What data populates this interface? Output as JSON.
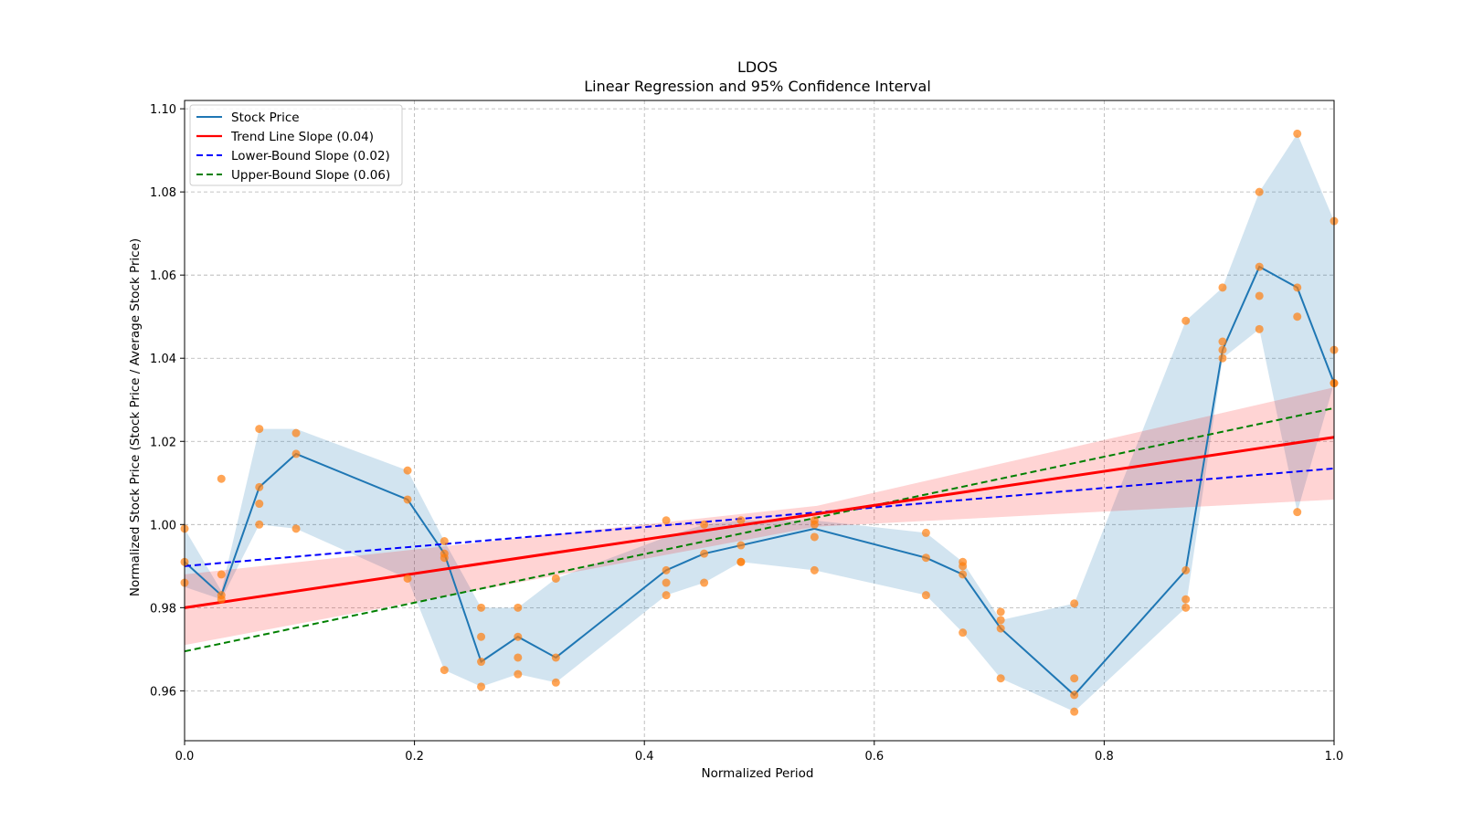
{
  "chart_data": {
    "type": "line",
    "title": "LDOS",
    "subtitle": "Linear Regression and 95% Confidence Interval",
    "xlabel": "Normalized Period",
    "ylabel": "Normalized Stock Price (Stock Price / Average Stock Price)",
    "xlim": [
      0,
      1
    ],
    "ylim": [
      0.948,
      1.102
    ],
    "xticks": [
      0.0,
      0.2,
      0.4,
      0.6,
      0.8,
      1.0
    ],
    "xtick_labels": [
      "0.0",
      "0.2",
      "0.4",
      "0.6",
      "0.8",
      "1.0"
    ],
    "yticks": [
      0.96,
      0.98,
      1.0,
      1.02,
      1.04,
      1.06,
      1.08,
      1.1
    ],
    "ytick_labels": [
      "0.96",
      "0.98",
      "1.00",
      "1.02",
      "1.04",
      "1.06",
      "1.08",
      "1.10"
    ],
    "grid": true,
    "legend_position": "top-left",
    "legend": [
      {
        "label": "Stock Price",
        "color": "#1f77b4",
        "style": "solid"
      },
      {
        "label": "Trend Line Slope (0.04)",
        "color": "#ff0000",
        "style": "solid"
      },
      {
        "label": "Lower-Bound Slope (0.02)",
        "color": "#0000ff",
        "style": "dashed"
      },
      {
        "label": "Upper-Bound Slope (0.06)",
        "color": "#008000",
        "style": "dashed"
      }
    ],
    "stock_price": {
      "x": [
        0.0,
        0.032,
        0.065,
        0.097,
        0.194,
        0.226,
        0.258,
        0.29,
        0.323,
        0.419,
        0.452,
        0.484,
        0.548,
        0.645,
        0.677,
        0.71,
        0.774,
        0.871,
        0.903,
        0.935,
        0.968,
        1.0
      ],
      "y": [
        0.991,
        0.983,
        1.009,
        1.017,
        1.006,
        0.993,
        0.967,
        0.973,
        0.968,
        0.989,
        0.993,
        0.995,
        0.999,
        0.992,
        0.988,
        0.975,
        0.959,
        0.989,
        1.042,
        1.062,
        1.057,
        1.034
      ]
    },
    "stock_band": {
      "lower": [
        0.985,
        0.982,
        1.0,
        0.999,
        0.987,
        0.965,
        0.961,
        0.964,
        0.962,
        0.983,
        0.986,
        0.991,
        0.989,
        0.983,
        0.974,
        0.963,
        0.955,
        0.98,
        1.04,
        1.047,
        1.003,
        1.034
      ],
      "upper": [
        0.999,
        0.984,
        1.023,
        1.023,
        1.013,
        0.996,
        0.98,
        0.98,
        0.987,
        0.997,
        1.0,
        1.001,
        1.001,
        0.998,
        0.991,
        0.977,
        0.981,
        1.049,
        1.057,
        1.08,
        1.094,
        1.073
      ]
    },
    "scatter_points": {
      "x": [
        0.0,
        0.0,
        0.0,
        0.032,
        0.032,
        0.032,
        0.032,
        0.065,
        0.065,
        0.065,
        0.065,
        0.097,
        0.097,
        0.097,
        0.194,
        0.194,
        0.194,
        0.226,
        0.226,
        0.226,
        0.226,
        0.258,
        0.258,
        0.258,
        0.258,
        0.29,
        0.29,
        0.29,
        0.29,
        0.323,
        0.323,
        0.323,
        0.419,
        0.419,
        0.419,
        0.419,
        0.452,
        0.452,
        0.452,
        0.484,
        0.484,
        0.484,
        0.484,
        0.548,
        0.548,
        0.548,
        0.548,
        0.645,
        0.645,
        0.645,
        0.677,
        0.677,
        0.677,
        0.677,
        0.71,
        0.71,
        0.71,
        0.71,
        0.774,
        0.774,
        0.774,
        0.774,
        0.871,
        0.871,
        0.871,
        0.871,
        0.903,
        0.903,
        0.903,
        0.903,
        0.935,
        0.935,
        0.935,
        0.935,
        0.968,
        0.968,
        0.968,
        0.968,
        1.0,
        1.0,
        1.0,
        1.0
      ],
      "y": [
        0.999,
        0.991,
        0.986,
        1.011,
        0.988,
        0.983,
        0.982,
        1.023,
        1.009,
        1.005,
        1.0,
        1.022,
        1.017,
        0.999,
        1.013,
        1.006,
        0.987,
        0.996,
        0.993,
        0.992,
        0.965,
        0.98,
        0.973,
        0.967,
        0.961,
        0.98,
        0.973,
        0.968,
        0.964,
        0.987,
        0.968,
        0.962,
        1.001,
        0.989,
        0.986,
        0.983,
        1.0,
        0.993,
        0.986,
        1.001,
        0.995,
        0.991,
        0.991,
        1.001,
        1.0,
        0.997,
        0.989,
        0.998,
        0.992,
        0.983,
        0.991,
        0.99,
        0.988,
        0.974,
        0.979,
        0.977,
        0.975,
        0.963,
        0.981,
        0.963,
        0.959,
        0.955,
        1.049,
        0.989,
        0.982,
        0.98,
        1.057,
        1.044,
        1.042,
        1.04,
        1.08,
        1.062,
        1.055,
        1.047,
        1.094,
        1.057,
        1.05,
        1.003,
        1.073,
        1.042,
        1.034,
        1.034
      ]
    },
    "trend_line": {
      "x": [
        0,
        1
      ],
      "y": [
        0.98,
        1.021
      ]
    },
    "trend_band": {
      "x": [
        0,
        0.55,
        1
      ],
      "lower": [
        0.971,
        0.9995,
        1.006
      ],
      "upper": [
        0.988,
        1.0045,
        1.033
      ]
    },
    "lower_bound_line": {
      "x": [
        0,
        1
      ],
      "y": [
        0.99,
        1.0135
      ]
    },
    "upper_bound_line": {
      "x": [
        0,
        1
      ],
      "y": [
        0.9695,
        1.028
      ]
    }
  }
}
